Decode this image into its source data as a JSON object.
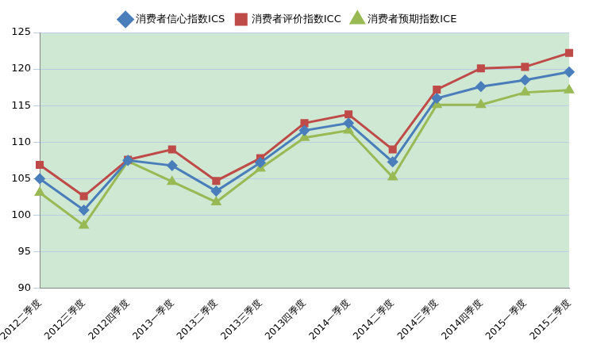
{
  "chart_data": {
    "type": "line",
    "categories": [
      "2012二季度",
      "2012三季度",
      "2012四季度",
      "2013一季度",
      "2013二季度",
      "2013三季度",
      "2013四季度",
      "2014一季度",
      "2014二季度",
      "2014三季度",
      "2014四季度",
      "2015一季度",
      "2015二季度"
    ],
    "series": [
      {
        "name": "消费者信心指数ICS",
        "color": "#4a7ebb",
        "marker": "diamond",
        "values": [
          105.0,
          100.7,
          107.5,
          106.8,
          103.3,
          107.2,
          111.6,
          112.6,
          107.3,
          116.0,
          117.6,
          118.5,
          119.6
        ]
      },
      {
        "name": "消费者评价指数ICC",
        "color": "#be4b48",
        "marker": "square",
        "values": [
          106.9,
          102.6,
          107.6,
          109.0,
          104.7,
          107.8,
          112.6,
          113.8,
          109.0,
          117.2,
          120.1,
          120.3,
          122.2
        ]
      },
      {
        "name": "消费者预期指数ICE",
        "color": "#98b954",
        "marker": "triangle",
        "values": [
          103.1,
          98.6,
          107.4,
          104.6,
          101.8,
          106.4,
          110.6,
          111.6,
          105.2,
          115.1,
          115.1,
          116.8,
          117.1
        ]
      }
    ],
    "ylim": [
      90,
      125
    ],
    "yticks": [
      90,
      95,
      100,
      105,
      110,
      115,
      120,
      125
    ],
    "grid": true,
    "legend": "top"
  }
}
